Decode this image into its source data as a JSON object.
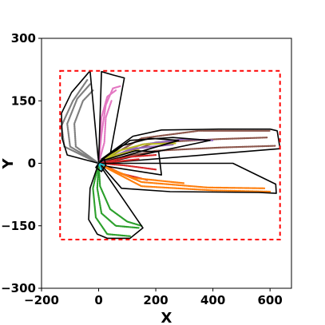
{
  "chart_data": {
    "type": "scatter",
    "title": "",
    "xlabel": "X",
    "ylabel": "Y",
    "xlim": [
      -200,
      675
    ],
    "ylim": [
      -300,
      300
    ],
    "xticks": [
      -200,
      0,
      200,
      400,
      600
    ],
    "yticks": [
      -300,
      -150,
      0,
      150,
      300
    ],
    "xtick_labels": [
      "−200",
      "0",
      "200",
      "400",
      "600"
    ],
    "ytick_labels": [
      "−300",
      "−150",
      "0",
      "150",
      "300"
    ],
    "grid": false,
    "legend": "none",
    "bounding_box": {
      "x": [
        -135,
        635
      ],
      "y": [
        -183,
        222
      ],
      "color": "#ff0000",
      "style": "dashed"
    },
    "center": [
      0,
      0
    ],
    "sectors": [
      {
        "color": "#7f7f7f",
        "polygon": [
          [
            0,
            0
          ],
          [
            -30,
            222
          ],
          [
            -95,
            170
          ],
          [
            -130,
            120
          ],
          [
            -128,
            60
          ],
          [
            -110,
            20
          ]
        ],
        "curves": [
          [
            [
              0,
              0
            ],
            [
              -120,
              40
            ],
            [
              -130,
              90
            ],
            [
              -90,
              150
            ],
            [
              -40,
              200
            ]
          ],
          [
            [
              0,
              0
            ],
            [
              -100,
              40
            ],
            [
              -110,
              95
            ],
            [
              -75,
              155
            ],
            [
              -30,
              190
            ]
          ],
          [
            [
              0,
              0
            ],
            [
              -80,
              40
            ],
            [
              -85,
              95
            ],
            [
              -55,
              150
            ],
            [
              -20,
              175
            ]
          ]
        ]
      },
      {
        "color": "#e377c2",
        "polygon": [
          [
            0,
            0
          ],
          [
            10,
            220
          ],
          [
            50,
            212
          ],
          [
            90,
            205
          ],
          [
            40,
            20
          ]
        ],
        "curves": [
          [
            [
              0,
              0
            ],
            [
              10,
              70
            ],
            [
              25,
              140
            ],
            [
              50,
              180
            ],
            [
              75,
              185
            ]
          ],
          [
            [
              0,
              0
            ],
            [
              5,
              60
            ],
            [
              10,
              110
            ],
            [
              30,
              160
            ],
            [
              60,
              175
            ]
          ],
          [
            [
              0,
              0
            ],
            [
              20,
              50
            ],
            [
              25,
              110
            ],
            [
              45,
              150
            ]
          ]
        ]
      },
      {
        "color": "#8c564b",
        "polygon": [
          [
            10,
            10
          ],
          [
            120,
            65
          ],
          [
            220,
            80
          ],
          [
            420,
            82
          ],
          [
            600,
            82
          ],
          [
            625,
            78
          ],
          [
            635,
            35
          ],
          [
            10,
            0
          ]
        ],
        "curves": [
          [
            [
              10,
              5
            ],
            [
              150,
              60
            ],
            [
              350,
              78
            ],
            [
              600,
              78
            ]
          ],
          [
            [
              10,
              5
            ],
            [
              200,
              50
            ],
            [
              420,
              58
            ],
            [
              590,
              62
            ]
          ],
          [
            [
              10,
              5
            ],
            [
              200,
              30
            ],
            [
              430,
              38
            ],
            [
              620,
              42
            ]
          ]
        ]
      },
      {
        "color": "#9467bd",
        "polygon": [
          [
            10,
            5
          ],
          [
            110,
            55
          ],
          [
            260,
            62
          ],
          [
            390,
            55
          ],
          [
            10,
            0
          ]
        ],
        "curves": [
          [
            [
              10,
              5
            ],
            [
              150,
              45
            ],
            [
              300,
              58
            ],
            [
              400,
              55
            ]
          ],
          [
            [
              10,
              5
            ],
            [
              120,
              35
            ],
            [
              260,
              45
            ]
          ]
        ]
      },
      {
        "color": "#bcbd22",
        "polygon": [
          [
            5,
            5
          ],
          [
            80,
            42
          ],
          [
            180,
            60
          ],
          [
            280,
            55
          ],
          [
            5,
            0
          ]
        ],
        "curves": [
          [
            [
              5,
              5
            ],
            [
              70,
              30
            ],
            [
              160,
              46
            ],
            [
              270,
              48
            ]
          ],
          [
            [
              5,
              5
            ],
            [
              60,
              20
            ],
            [
              140,
              32
            ]
          ]
        ]
      },
      {
        "color": "#d62728",
        "polygon": [
          [
            5,
            5
          ],
          [
            130,
            30
          ],
          [
            210,
            28
          ],
          [
            220,
            -28
          ],
          [
            5,
            -5
          ]
        ],
        "curves": [
          [
            [
              5,
              0
            ],
            [
              100,
              15
            ],
            [
              200,
              20
            ]
          ],
          [
            [
              5,
              0
            ],
            [
              90,
              -5
            ],
            [
              200,
              -15
            ]
          ],
          [
            [
              5,
              0
            ],
            [
              80,
              -25
            ],
            [
              170,
              -40
            ]
          ],
          [
            [
              5,
              0
            ],
            [
              70,
              5
            ],
            [
              140,
              10
            ]
          ]
        ]
      },
      {
        "color": "#ff7f0e",
        "polygon": [
          [
            10,
            -5
          ],
          [
            80,
            -60
          ],
          [
            250,
            -68
          ],
          [
            560,
            -70
          ],
          [
            622,
            -72
          ],
          [
            620,
            -50
          ],
          [
            470,
            0
          ],
          [
            10,
            0
          ]
        ],
        "curves": [
          [
            [
              10,
              -5
            ],
            [
              150,
              -55
            ],
            [
              400,
              -65
            ],
            [
              600,
              -68
            ]
          ],
          [
            [
              10,
              -5
            ],
            [
              150,
              -45
            ],
            [
              380,
              -58
            ],
            [
              580,
              -60
            ]
          ],
          [
            [
              10,
              -5
            ],
            [
              120,
              -35
            ],
            [
              300,
              -48
            ]
          ]
        ]
      },
      {
        "color": "#2ca02c",
        "polygon": [
          [
            0,
            0
          ],
          [
            -30,
            -60
          ],
          [
            -35,
            -135
          ],
          [
            -5,
            -170
          ],
          [
            30,
            -180
          ],
          [
            110,
            -180
          ],
          [
            155,
            -155
          ],
          [
            10,
            -10
          ]
        ],
        "curves": [
          [
            [
              0,
              0
            ],
            [
              -20,
              -60
            ],
            [
              -10,
              -130
            ],
            [
              30,
              -170
            ],
            [
              110,
              -175
            ]
          ],
          [
            [
              0,
              0
            ],
            [
              -5,
              -60
            ],
            [
              10,
              -120
            ],
            [
              60,
              -150
            ],
            [
              140,
              -155
            ]
          ],
          [
            [
              0,
              0
            ],
            [
              5,
              -55
            ],
            [
              40,
              -110
            ],
            [
              100,
              -140
            ],
            [
              150,
              -150
            ]
          ]
        ]
      },
      {
        "color": "#17becf",
        "polygon": [
          [
            0,
            0
          ],
          [
            20,
            10
          ],
          [
            25,
            -5
          ],
          [
            10,
            -20
          ],
          [
            -10,
            -10
          ]
        ],
        "curves": [
          [
            [
              0,
              0
            ],
            [
              20,
              -5
            ]
          ],
          [
            [
              0,
              0
            ],
            [
              10,
              -15
            ]
          ]
        ]
      }
    ]
  }
}
